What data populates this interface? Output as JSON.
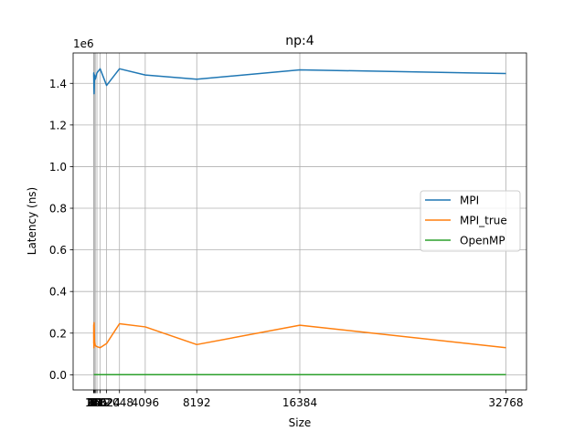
{
  "chart_data": {
    "type": "line",
    "title": "np:4",
    "xlabel": "Size",
    "ylabel": "Latency (ns)",
    "y_offset_label": "1e6",
    "xlim": [
      -1636,
      34403
    ],
    "ylim": [
      -73000,
      1546000
    ],
    "x_ticks": [
      1,
      2,
      4,
      8,
      16,
      32,
      64,
      128,
      256,
      512,
      1024,
      2048,
      4096,
      8192,
      16384,
      32768
    ],
    "x_tick_labels": [
      "1",
      "2",
      "4",
      "8",
      "16",
      "32",
      "64",
      "128",
      "256",
      "512",
      "1024",
      "2048",
      "4096",
      "8192",
      "16384",
      "32768"
    ],
    "y_ticks": [
      0,
      200000,
      400000,
      600000,
      800000,
      1000000,
      1200000,
      1400000
    ],
    "y_tick_labels": [
      "0.0",
      "0.2",
      "0.4",
      "0.6",
      "0.8",
      "1.0",
      "1.2",
      "1.4"
    ],
    "grid": true,
    "legend_position": "center-right",
    "x": [
      1,
      2,
      4,
      8,
      16,
      32,
      64,
      128,
      256,
      512,
      1024,
      2048,
      4096,
      8192,
      16384,
      32768
    ],
    "series": [
      {
        "name": "MPI",
        "color": "#1f77b4",
        "values": [
          1430000,
          1450000,
          1440000,
          1410000,
          1380000,
          1350000,
          1440000,
          1420000,
          1450000,
          1470000,
          1390000,
          1470000,
          1440000,
          1420000,
          1465000,
          1447000
        ]
      },
      {
        "name": "MPI_true",
        "color": "#ff7f0e",
        "values": [
          180000,
          240000,
          150000,
          220000,
          130000,
          250000,
          160000,
          140000,
          135000,
          130000,
          150000,
          245000,
          230000,
          145000,
          238000,
          130000
        ]
      },
      {
        "name": "OpenMP",
        "color": "#2ca02c",
        "values": [
          400,
          400,
          400,
          400,
          400,
          400,
          400,
          400,
          400,
          400,
          400,
          400,
          400,
          400,
          400,
          400
        ]
      }
    ]
  }
}
